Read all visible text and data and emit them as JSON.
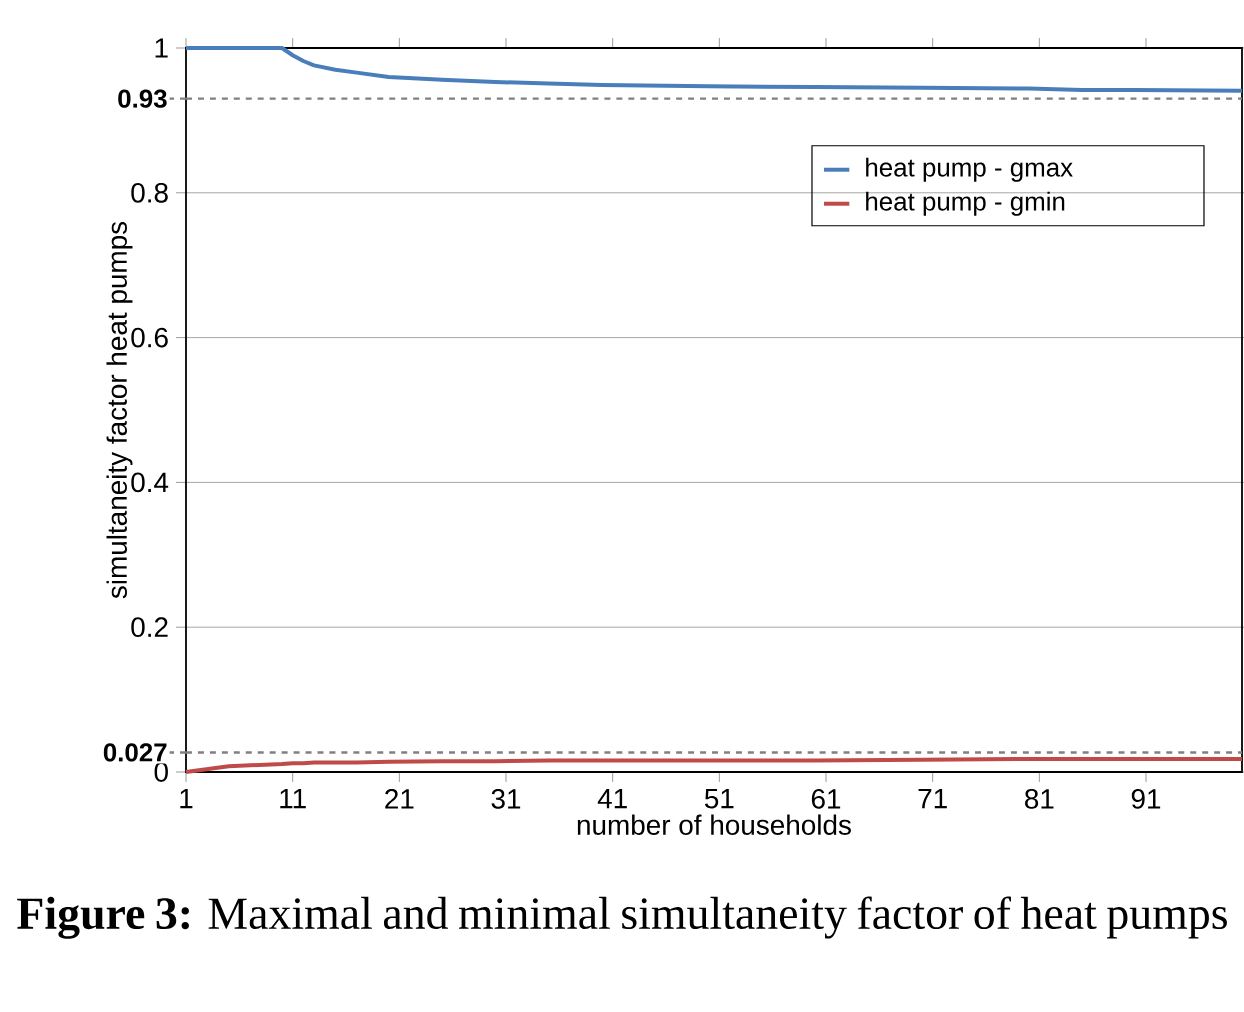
{
  "chart_data": {
    "type": "line",
    "xlabel": "number of households",
    "ylabel": "simultaneity factor heat pumps",
    "annotations": [
      "**Figure 3:** Maximal and minimal simultaneity factor of heat pumps"
    ],
    "x": [
      1,
      5,
      10,
      11,
      12,
      13,
      15,
      17,
      20,
      25,
      30,
      35,
      40,
      50,
      60,
      70,
      80,
      85,
      90,
      100
    ],
    "series": [
      {
        "name": "heat pump - gmax",
        "color": "#4a7ebb",
        "values": [
          1,
          1,
          1,
          0.99,
          0.982,
          0.976,
          0.97,
          0.966,
          0.96,
          0.956,
          0.953,
          0.951,
          0.949,
          0.947,
          0.946,
          0.945,
          0.944,
          0.942,
          0.942,
          0.941
        ]
      },
      {
        "name": "heat pump - gmin",
        "color": "#be4b48",
        "values": [
          0,
          0.008,
          0.011,
          0.012,
          0.012,
          0.013,
          0.013,
          0.013,
          0.014,
          0.015,
          0.015,
          0.016,
          0.016,
          0.016,
          0.016,
          0.017,
          0.018,
          0.018,
          0.018,
          0.018
        ]
      }
    ],
    "xlim": [
      1,
      100
    ],
    "xticks": [
      1,
      11,
      21,
      31,
      41,
      51,
      61,
      71,
      81,
      91
    ],
    "ylim": [
      0,
      1
    ],
    "yticks": [
      0,
      0.2,
      0.4,
      0.6,
      0.8,
      1
    ],
    "ref_lines": [
      {
        "axis": "y",
        "value": 0.93,
        "label": "0.93",
        "color": "#808080",
        "line_style": "dashed"
      },
      {
        "axis": "y",
        "value": 0.027,
        "label": "0.027",
        "color": "#808080",
        "line_style": "dashed"
      }
    ],
    "grid": "y",
    "legend": "top right",
    "marker": "none",
    "line_style": "solid"
  }
}
